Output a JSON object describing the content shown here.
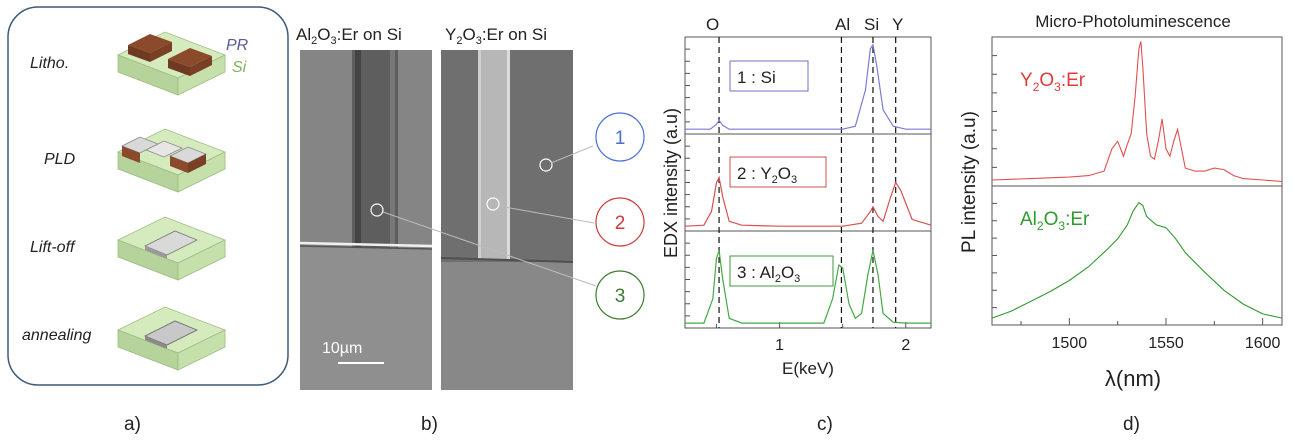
{
  "panel_a": {
    "label": "a)",
    "steps": [
      "Litho.",
      "PLD",
      "Lift-off",
      "annealing"
    ],
    "legend_pr": "PR",
    "legend_si": "Si",
    "colors": {
      "si": "#d6ebbd",
      "si_side": "#a9c98a",
      "pr": "#8b4a2b",
      "film": "#d9d9d9",
      "frame": "#3c5a78"
    }
  },
  "panel_b": {
    "label": "b)",
    "title_left": {
      "pre": "Al",
      "sub1": "2",
      "mid": "O",
      "sub2": "3",
      "post": ":Er on Si"
    },
    "title_right": {
      "pre": "Y",
      "sub1": "2",
      "mid": "O",
      "sub2": "3",
      "post": ":Er on Si"
    },
    "scale_bar": "10µm",
    "callouts": [
      {
        "text": "1",
        "color": "#4a6fd1"
      },
      {
        "text": "2",
        "color": "#d03a3a"
      },
      {
        "text": "3",
        "color": "#3d7a2e"
      }
    ]
  },
  "panel_c": {
    "label": "c)",
    "top_labels": [
      "O",
      "Al",
      "Si",
      "Y"
    ],
    "boxes": [
      {
        "pre": "1 : Si",
        "sub": "",
        "post": "",
        "color": "#7070c0"
      },
      {
        "pre": "2 : Y",
        "sub": "2",
        "mid": "O",
        "sub2": "3",
        "color": "#d05050"
      },
      {
        "pre": "3 : Al",
        "sub": "2",
        "mid": "O",
        "sub2": "3",
        "color": "#3d9a3d"
      }
    ]
  },
  "panel_d": {
    "label": "d)",
    "title": "Micro-Photoluminescence",
    "label_y2o3": {
      "pre": "Y",
      "sub1": "2",
      "mid": "O",
      "sub2": "3",
      "post": ":Er",
      "color": "#e03c3c"
    },
    "label_al2o3": {
      "pre": "Al",
      "sub1": "2",
      "mid": "O",
      "sub2": "3",
      "post": ":Er",
      "color": "#2f9a2f"
    }
  },
  "chart_data": [
    {
      "type": "line",
      "panel": "c",
      "xlabel": "E(keV)",
      "ylabel": "EDX intensity (a.u)",
      "xlim": [
        0.25,
        2.2
      ],
      "xticks": [
        1,
        2
      ],
      "markers": [
        {
          "name": "O",
          "x": 0.52
        },
        {
          "name": "Al",
          "x": 1.49
        },
        {
          "name": "Si",
          "x": 1.74
        },
        {
          "name": "Y",
          "x": 1.92
        }
      ],
      "series": [
        {
          "name": "1 : Si",
          "color": "#7b7bd6",
          "x": [
            0.25,
            0.45,
            0.5,
            0.52,
            0.55,
            0.6,
            1.0,
            1.5,
            1.6,
            1.68,
            1.72,
            1.74,
            1.77,
            1.82,
            1.9,
            2.0,
            2.2
          ],
          "y": [
            0.05,
            0.05,
            0.1,
            0.14,
            0.09,
            0.05,
            0.05,
            0.05,
            0.08,
            0.45,
            0.88,
            0.92,
            0.7,
            0.25,
            0.08,
            0.05,
            0.05
          ]
        },
        {
          "name": "2 : Y2O3",
          "color": "#d85050",
          "x": [
            0.25,
            0.4,
            0.46,
            0.5,
            0.52,
            0.55,
            0.6,
            0.7,
            1.0,
            1.5,
            1.65,
            1.72,
            1.74,
            1.78,
            1.82,
            1.88,
            1.92,
            1.96,
            2.05,
            2.2
          ],
          "y": [
            0.05,
            0.06,
            0.2,
            0.5,
            0.55,
            0.35,
            0.1,
            0.06,
            0.05,
            0.05,
            0.08,
            0.2,
            0.25,
            0.15,
            0.1,
            0.35,
            0.5,
            0.42,
            0.12,
            0.06
          ]
        },
        {
          "name": "3 : Al2O3",
          "color": "#44a844",
          "x": [
            0.25,
            0.4,
            0.47,
            0.5,
            0.52,
            0.55,
            0.6,
            0.7,
            1.0,
            1.35,
            1.42,
            1.47,
            1.5,
            1.55,
            1.6,
            1.65,
            1.7,
            1.74,
            1.78,
            1.82,
            1.9,
            2.0,
            2.2
          ],
          "y": [
            0.05,
            0.05,
            0.3,
            0.72,
            0.8,
            0.5,
            0.1,
            0.05,
            0.05,
            0.05,
            0.3,
            0.65,
            0.62,
            0.25,
            0.1,
            0.15,
            0.55,
            0.8,
            0.55,
            0.15,
            0.06,
            0.05,
            0.05
          ]
        }
      ]
    },
    {
      "type": "line",
      "panel": "d",
      "title": "Micro-Photoluminescence",
      "xlabel": "λ(nm)",
      "ylabel": "PL intensity (a.u)",
      "xlim": [
        1460,
        1610
      ],
      "xticks": [
        1500,
        1550,
        1600
      ],
      "series": [
        {
          "name": "Y2O3:Er",
          "color": "#e05050",
          "x": [
            1460,
            1480,
            1500,
            1510,
            1518,
            1522,
            1525,
            1528,
            1530,
            1532,
            1534,
            1536,
            1537,
            1538,
            1540,
            1542,
            1544,
            1546,
            1548,
            1550,
            1552,
            1554,
            1556,
            1558,
            1560,
            1565,
            1570,
            1575,
            1580,
            1585,
            1590,
            1600,
            1610
          ],
          "y": [
            0.04,
            0.05,
            0.06,
            0.07,
            0.1,
            0.25,
            0.3,
            0.2,
            0.28,
            0.35,
            0.6,
            0.92,
            0.97,
            0.8,
            0.35,
            0.2,
            0.18,
            0.3,
            0.45,
            0.25,
            0.2,
            0.3,
            0.38,
            0.25,
            0.12,
            0.1,
            0.1,
            0.12,
            0.11,
            0.07,
            0.05,
            0.04,
            0.03
          ]
        },
        {
          "name": "Al2O3:Er",
          "color": "#2f9a2f",
          "x": [
            1460,
            1470,
            1480,
            1490,
            1500,
            1510,
            1520,
            1525,
            1530,
            1533,
            1536,
            1538,
            1540,
            1545,
            1550,
            1555,
            1560,
            1570,
            1580,
            1590,
            1600,
            1610
          ],
          "y": [
            0.05,
            0.1,
            0.17,
            0.24,
            0.32,
            0.42,
            0.55,
            0.62,
            0.72,
            0.82,
            0.88,
            0.86,
            0.78,
            0.72,
            0.7,
            0.62,
            0.52,
            0.38,
            0.25,
            0.15,
            0.08,
            0.05
          ]
        }
      ]
    }
  ]
}
